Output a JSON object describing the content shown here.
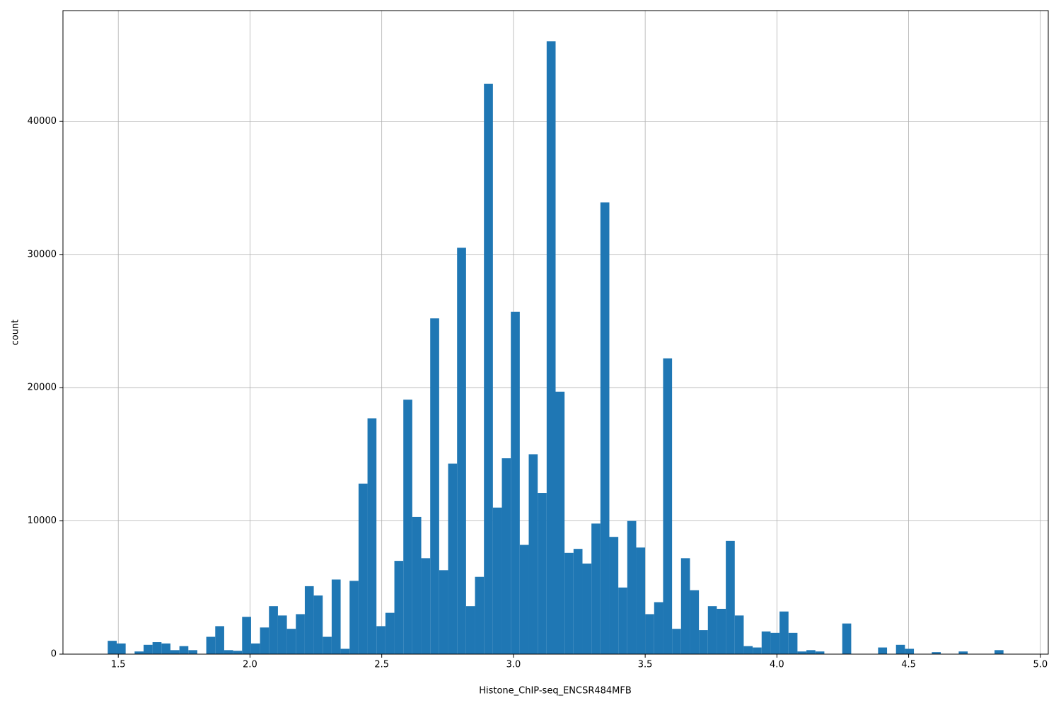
{
  "chart_data": {
    "type": "histogram",
    "xlabel": "Histone_ChIP-seq_ENCSR484MFB",
    "ylabel": "count",
    "color": "#1f77b4",
    "grid": true,
    "bins": [
      1.46,
      1.494,
      1.528,
      1.562,
      1.596,
      1.63,
      1.664,
      1.698,
      1.732,
      1.766,
      1.8,
      1.834,
      1.868,
      1.902,
      1.936,
      1.97,
      2.004,
      2.038,
      2.072,
      2.106,
      2.14,
      2.174,
      2.208,
      2.242,
      2.276,
      2.31,
      2.344,
      2.378,
      2.412,
      2.446,
      2.48,
      2.514,
      2.548,
      2.582,
      2.616,
      2.65,
      2.684,
      2.718,
      2.752,
      2.786,
      2.82,
      2.854,
      2.888,
      2.922,
      2.956,
      2.99,
      3.024,
      3.058,
      3.092,
      3.126,
      3.16,
      3.194,
      3.228,
      3.262,
      3.296,
      3.33,
      3.364,
      3.398,
      3.432,
      3.466,
      3.5,
      3.534,
      3.568,
      3.602,
      3.636,
      3.67,
      3.704,
      3.738,
      3.772,
      3.806,
      3.84,
      3.874,
      3.908,
      3.942,
      3.976,
      4.01,
      4.044,
      4.078,
      4.112,
      4.146,
      4.18,
      4.214,
      4.248,
      4.282,
      4.316,
      4.35,
      4.384,
      4.418,
      4.452,
      4.486,
      4.52,
      4.554,
      4.588,
      4.622,
      4.656,
      4.69,
      4.724,
      4.758,
      4.792,
      4.826,
      4.86
    ],
    "values": [
      1000,
      800,
      0,
      200,
      700,
      900,
      800,
      300,
      600,
      300,
      0,
      1300,
      2100,
      300,
      250,
      2800,
      800,
      2000,
      3600,
      2900,
      1900,
      3000,
      5100,
      4400,
      1300,
      5600,
      400,
      5500,
      12800,
      17700,
      2100,
      3100,
      7000,
      19100,
      10300,
      7200,
      25200,
      6300,
      14300,
      30500,
      3600,
      5800,
      42800,
      11000,
      14700,
      25700,
      8200,
      15000,
      12100,
      46000,
      19700,
      7600,
      7900,
      6800,
      9800,
      33900,
      8800,
      5000,
      10000,
      8000,
      3000,
      3900,
      22200,
      1900,
      7200,
      4800,
      1800,
      3600,
      3400,
      8500,
      2900,
      600,
      500,
      1700,
      1600,
      3200,
      1600,
      200,
      300,
      200,
      0,
      0,
      2300,
      0,
      0,
      0,
      500,
      0,
      700,
      400,
      0,
      0,
      150,
      0,
      0,
      200,
      0,
      0,
      0,
      300
    ],
    "xlim": [
      1.29,
      5.03
    ],
    "ylim": [
      0,
      48300
    ],
    "xticks": [
      1.5,
      {
        "value": 2.0,
        "label": "2.0"
      },
      2.5,
      {
        "value": 3.0,
        "label": "3.0"
      },
      3.5,
      {
        "value": 4.0,
        "label": "4.0"
      },
      4.5,
      {
        "value": 5.0,
        "label": "5.0"
      }
    ],
    "yticks": [
      0,
      10000,
      20000,
      30000,
      40000
    ]
  }
}
